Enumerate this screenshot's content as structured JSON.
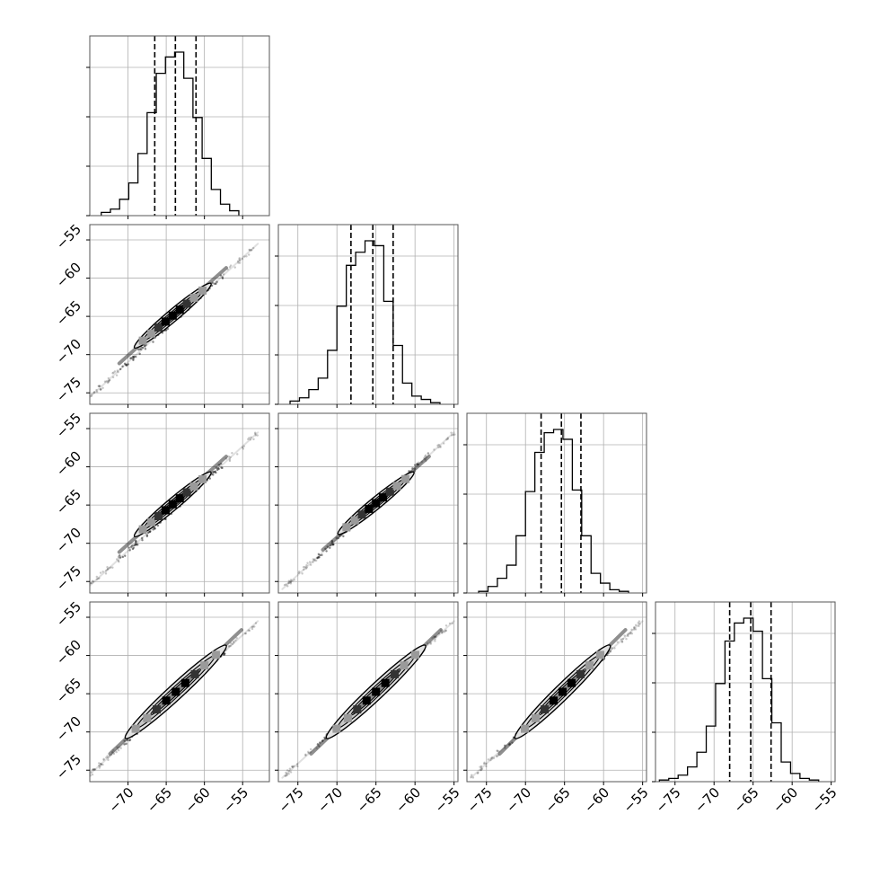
{
  "chart_data": {
    "type": "corner",
    "title": "",
    "grid": true,
    "parameters": [
      {
        "xlim": [
          -75,
          -51.5
        ],
        "ylim": [
          -76.5,
          -53
        ],
        "ticks": [
          -70,
          -65,
          -60,
          -55
        ]
      },
      {
        "xlim": [
          -77.5,
          -54.5
        ],
        "ylim": [
          -76.5,
          -53
        ],
        "ticks": [
          -75,
          -70,
          -65,
          -60,
          -55
        ]
      },
      {
        "xlim": [
          -77.5,
          -54.5
        ],
        "ylim": [
          -76.5,
          -53
        ],
        "ticks": [
          -75,
          -70,
          -65,
          -60,
          -55
        ]
      },
      {
        "xlim": [
          -77.5,
          -54.5
        ],
        "ylim": [
          -76.5,
          -53
        ],
        "ticks": [
          -75,
          -70,
          -65,
          -60,
          -55
        ]
      }
    ],
    "tick_labels": [
      "−75",
      "−70",
      "−65",
      "−60",
      "−55"
    ],
    "y_tick_values": [
      -75,
      -70,
      -65,
      -60,
      -55
    ],
    "y_tick_labels": [
      "−75",
      "−70",
      "−65",
      "−60",
      "−55"
    ],
    "histograms": [
      {
        "bin_edges": [
          -73.5,
          -72.3,
          -71.1,
          -69.9,
          -68.7,
          -67.5,
          -66.3,
          -65.1,
          -63.9,
          -62.7,
          -61.5,
          -60.3,
          -59.1,
          -57.9,
          -56.7,
          -55.5
        ],
        "counts": [
          0.02,
          0.04,
          0.1,
          0.2,
          0.38,
          0.63,
          0.87,
          0.97,
          1.0,
          0.84,
          0.6,
          0.35,
          0.16,
          0.07,
          0.03
        ],
        "quantiles": [
          -66.5,
          -63.8,
          -61.1
        ]
      },
      {
        "bin_edges": [
          -76,
          -74.8,
          -73.6,
          -72.4,
          -71.2,
          -70,
          -68.8,
          -67.6,
          -66.4,
          -65.2,
          -64,
          -62.8,
          -61.6,
          -60.4,
          -59.2,
          -58,
          -56.8
        ],
        "counts": [
          0.02,
          0.04,
          0.09,
          0.16,
          0.33,
          0.6,
          0.85,
          0.93,
          1.0,
          0.97,
          0.63,
          0.36,
          0.13,
          0.05,
          0.03,
          0.01
        ],
        "quantiles": [
          -68.2,
          -65.4,
          -62.8
        ]
      },
      {
        "bin_edges": [
          -76,
          -74.8,
          -73.6,
          -72.4,
          -71.2,
          -70,
          -68.8,
          -67.6,
          -66.4,
          -65.2,
          -64,
          -62.8,
          -61.6,
          -60.4,
          -59.2,
          -58,
          -56.8
        ],
        "counts": [
          0.01,
          0.04,
          0.09,
          0.17,
          0.35,
          0.62,
          0.86,
          0.98,
          1.0,
          0.94,
          0.63,
          0.35,
          0.12,
          0.06,
          0.02,
          0.01
        ],
        "quantiles": [
          -68.0,
          -65.4,
          -62.9
        ]
      },
      {
        "bin_edges": [
          -77,
          -75.8,
          -74.6,
          -73.4,
          -72.2,
          -71,
          -69.8,
          -68.6,
          -67.4,
          -66.2,
          -65,
          -63.8,
          -62.6,
          -61.4,
          -60.2,
          -59,
          -57.8,
          -56.6
        ],
        "counts": [
          0.01,
          0.02,
          0.04,
          0.09,
          0.18,
          0.34,
          0.6,
          0.86,
          0.97,
          1.0,
          0.92,
          0.63,
          0.36,
          0.12,
          0.05,
          0.02,
          0.01
        ],
        "quantiles": [
          -68.0,
          -65.3,
          -62.7
        ]
      }
    ],
    "pairs": [
      {
        "row": 1,
        "col": 0,
        "start": [
          -75.5,
          -76
        ],
        "end": [
          -53,
          -55.5
        ],
        "contour_start": [
          -68.8,
          -68.8
        ],
        "contour_end": [
          -59.5,
          -61
        ],
        "contour_width": 0.7,
        "contour_mid": [
          -63.7,
          -65.4
        ],
        "contour_rot": 49.5,
        "contour_rx": 6.1,
        "contour_ry": 0.8
      },
      {
        "row": 2,
        "col": 0,
        "start": [
          -75.5,
          -76
        ],
        "end": [
          -53,
          -55.5
        ],
        "contour_start": [
          -68.8,
          -68.8
        ],
        "contour_end": [
          -59.5,
          -61
        ],
        "contour_mid": [
          -63.7,
          -65.5
        ]
      },
      {
        "row": 3,
        "col": 0,
        "start": [
          -75.5,
          -76
        ],
        "end": [
          -53,
          -55.5
        ],
        "contour_start": [
          -70,
          -70.5
        ],
        "contour_end": [
          -57.5,
          -59
        ],
        "contour_mid": [
          -63.7,
          -65.5
        ]
      },
      {
        "row": 2,
        "col": 1,
        "start": [
          -77,
          -76
        ],
        "end": [
          -55,
          -55.5
        ],
        "contour_start": [
          -69.5,
          -68.5
        ],
        "contour_end": [
          -60.5,
          -61
        ],
        "contour_mid": [
          -65.3,
          -65.5
        ]
      },
      {
        "row": 3,
        "col": 1,
        "start": [
          -77,
          -76
        ],
        "end": [
          -55,
          -55.5
        ],
        "contour_start": [
          -71,
          -70.5
        ],
        "contour_end": [
          -59,
          -59
        ],
        "contour_mid": [
          -65.3,
          -65.5
        ]
      },
      {
        "row": 3,
        "col": 2,
        "start": [
          -77,
          -76
        ],
        "end": [
          -55,
          -55.5
        ],
        "contour_start": [
          -71,
          -70.5
        ],
        "contour_end": [
          -59.5,
          -59
        ],
        "contour_mid": [
          -65.4,
          -65.5
        ]
      }
    ]
  }
}
